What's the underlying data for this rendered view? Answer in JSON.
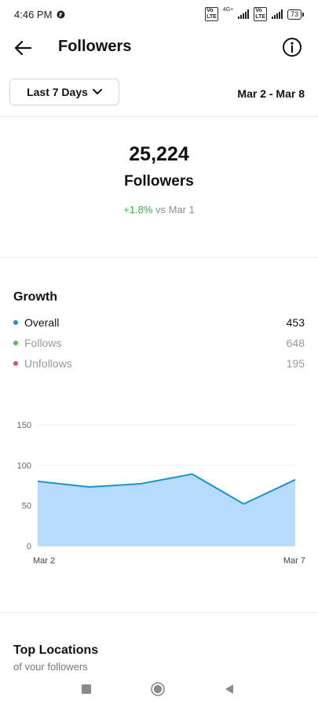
{
  "status_bar": {
    "time": "4:46 PM",
    "network_label": "4G+",
    "battery": "73",
    "icons": [
      "notification-icon",
      "volte-icon",
      "signal-icon",
      "battery-icon"
    ]
  },
  "header": {
    "title": "Followers",
    "back_icon": "arrow-left-icon",
    "info_icon": "info-icon"
  },
  "filters": {
    "range_label": "Last 7 Days",
    "date_range": "Mar 2 - Mar 8"
  },
  "summary": {
    "count": "25,224",
    "label": "Followers",
    "change_percent": "+1.8%",
    "change_suffix": "vs Mar 1"
  },
  "growth": {
    "title": "Growth",
    "legend": [
      {
        "label": "Overall",
        "value": "453",
        "color": "#1b93d1"
      },
      {
        "label": "Follows",
        "value": "648",
        "color": "#5cb85c"
      },
      {
        "label": "Unfollows",
        "value": "195",
        "color": "#e0505f"
      }
    ]
  },
  "chart_data": {
    "type": "area",
    "x": [
      "Mar 2",
      "Mar 3",
      "Mar 4",
      "Mar 5",
      "Mar 6",
      "Mar 7"
    ],
    "x_tick_labels": [
      "Mar 2",
      "Mar 7"
    ],
    "series": [
      {
        "values": [
          80,
          73,
          77,
          89,
          52,
          82
        ]
      }
    ],
    "y_ticks": [
      0,
      50,
      100,
      150
    ],
    "ylim": [
      0,
      150
    ],
    "grid": true,
    "line_color": "#1b93d1",
    "fill_color": "#b7dcfb"
  },
  "top_locations": {
    "title": "Top Locations",
    "subtitle": "of your followers"
  },
  "nav_bar": {
    "icons": [
      "square-icon",
      "home-circle-icon",
      "back-triangle-icon"
    ]
  }
}
